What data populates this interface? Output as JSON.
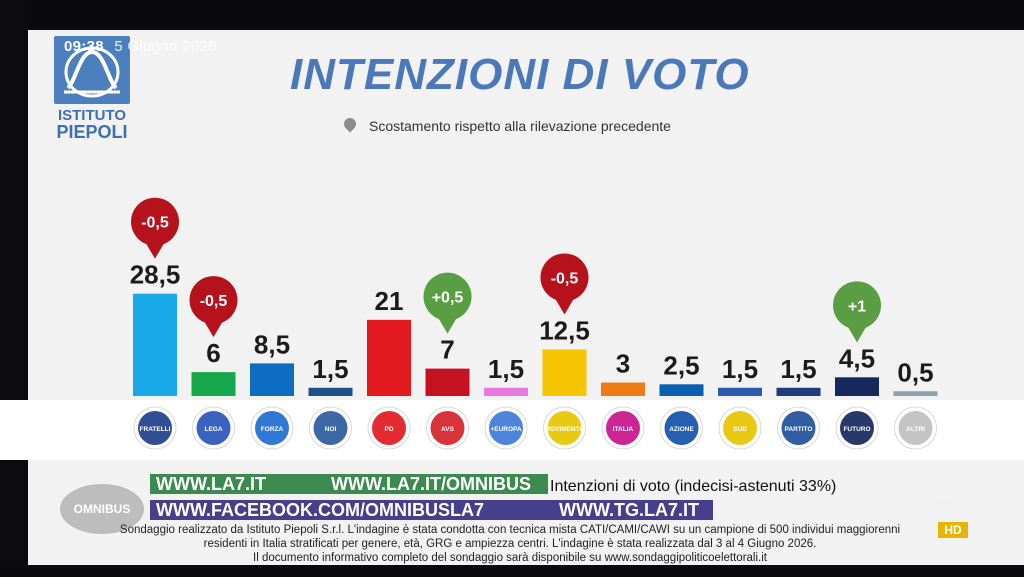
{
  "broadcast": {
    "time": "09:38",
    "date": "5 Giugno 2026",
    "show": "OMNIBUS",
    "channel_badge": "HD"
  },
  "institute": {
    "logo_text_line1": "ISTITUTO",
    "logo_text_line2": "PIEPOLI"
  },
  "chart_data": {
    "type": "bar",
    "title": "INTENZIONI DI VOTO",
    "subtitle": "Scostamento rispetto alla rilevazione precedente",
    "ylim": [
      0,
      30
    ],
    "value_labels": [
      "28,5",
      "6",
      "8,5",
      "1,5",
      "21",
      "7",
      "1,5",
      "12,5",
      "3",
      "2,5",
      "1,5",
      "1,5",
      "4,5",
      "0,5"
    ],
    "categories": [
      "Fratelli d'Italia",
      "Lega Salvini Premier",
      "Forza Italia Berlusconi",
      "Noi Moderati",
      "PD",
      "Alleanza Verdi e Sinistra",
      "+Europa",
      "MoVimento 5 Stelle",
      "Italia Viva",
      "Azione",
      "Sud chiama Nord",
      "Partito Liberaldemocratico",
      "Futuro Nazionale Vannacci",
      "Altri"
    ],
    "logo_labels": [
      "FRATELLI D'ITALIA",
      "LEGA SALVINI",
      "FORZA ITALIA",
      "NOI MODERATI",
      "PD",
      "AVS",
      "+EUROPA",
      "MOVIMENTO 5 STELLE",
      "ITALIA VIVA",
      "AZIONE",
      "SUD NORD",
      "PARTITO LIBERALDEMOCRATICO",
      "FUTURO NAZIONALE VANNACCI",
      "ALTRI PARTITI"
    ],
    "values": [
      28.5,
      6,
      8.5,
      1.5,
      21,
      7,
      1.5,
      12.5,
      3,
      2.5,
      1.5,
      1.5,
      4.5,
      0.5
    ],
    "colors": [
      "#1aa9e8",
      "#17a84c",
      "#0d6dc0",
      "#1f4f8a",
      "#e2191f",
      "#c41220",
      "#e879e0",
      "#f6c400",
      "#f07a14",
      "#0b5fb0",
      "#2b5aa8",
      "#1f3b7a",
      "#14285c",
      "#8e9fb2"
    ],
    "logo_colors": [
      "#1d3f8c",
      "#2a55b8",
      "#1d6ed1",
      "#2c5aa0",
      "#e2191f",
      "#d5222a",
      "#3e7bd9",
      "#e8c400",
      "#c8148c",
      "#1251a8",
      "#e8c400",
      "#1f4f9a",
      "#14285c",
      "#bfbfbf"
    ],
    "changes": [
      {
        "index": 0,
        "label": "-0,5",
        "color": "#b5121b"
      },
      {
        "index": 1,
        "label": "-0,5",
        "color": "#b5121b"
      },
      {
        "index": 5,
        "label": "+0,5",
        "color": "#5a9e44"
      },
      {
        "index": 7,
        "label": "-0,5",
        "color": "#b5121b"
      },
      {
        "index": 12,
        "label": "+1",
        "color": "#5a9e44"
      }
    ]
  },
  "footer": {
    "intention_line_start": "Intenzioni di voto (indecisi-astenuti 33%)",
    "ticker1_left": "WWW.LA7.IT",
    "ticker1_right": "WWW.LA7.IT/OMNIBUS",
    "ticker2_left": "WWW.FACEBOOK.COM/OMNIBUSLA7",
    "ticker2_right": "WWW.TG.LA7.IT",
    "note1": "Sondaggio realizzato da Istituto Piepoli S.r.l. L'indagine è stata condotta con tecnica mista CATI/CAMI/CAWI su un campione di 500 individui maggiorenni",
    "note2": "residenti in Italia stratificati per genere, età, GRG e ampiezza centri. L'indagine è stata realizzata dal 3 al 4 Giugno 2026.",
    "note3": "Il documento informativo completo del sondaggio sarà disponibile su www.sondaggipoliticoelettorali.it"
  }
}
